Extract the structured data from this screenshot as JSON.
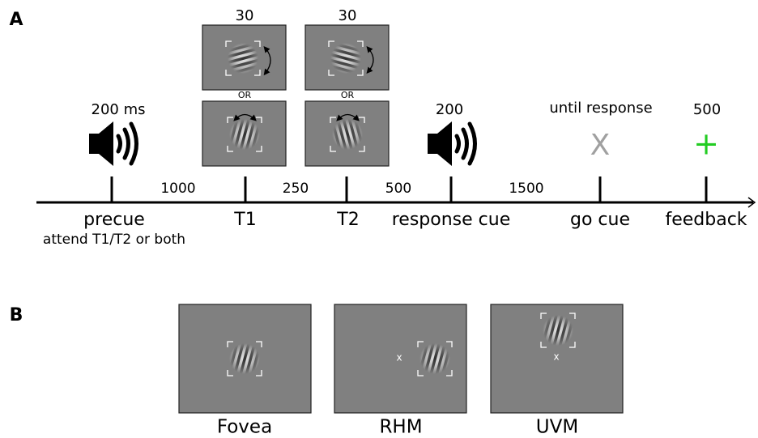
{
  "panel_labels": [
    "A",
    "B"
  ],
  "timeline": {
    "events": [
      {
        "label": "precue",
        "note": "attend T1/T2 or both",
        "top": "200 ms"
      },
      {
        "label": "T1",
        "top": "30"
      },
      {
        "label": "T2",
        "top": "30"
      },
      {
        "label": "response cue",
        "top": "200"
      },
      {
        "label": "go cue",
        "top": "until response",
        "symbol": "X"
      },
      {
        "label": "feedback",
        "top": "500",
        "symbol": "+"
      }
    ],
    "intervals": [
      "1000",
      "250",
      "500",
      "1500"
    ],
    "alternatives": [
      "OR",
      "OR"
    ]
  },
  "conditions": [
    {
      "label": "Fovea"
    },
    {
      "label": "RHM",
      "fixation": "x"
    },
    {
      "label": "UVM",
      "fixation": "x"
    }
  ]
}
